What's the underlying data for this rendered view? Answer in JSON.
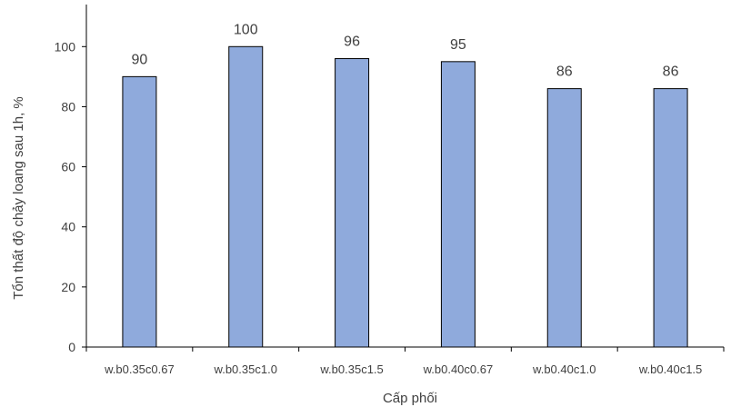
{
  "chart_data": {
    "type": "bar",
    "title": "",
    "xlabel": "Cấp phối",
    "ylabel": "Tổn thất độ chảy loang sau 1h, %",
    "categories": [
      "w.b0.35c0.67",
      "w.b0.35c1.0",
      "w.b0.35c1.5",
      "w.b0.40c0.67",
      "w.b0.40c1.0",
      "w.b0.40c1.5"
    ],
    "values": [
      90,
      100,
      96,
      95,
      86,
      86
    ],
    "data_labels": [
      "90",
      "100",
      "96",
      "95",
      "86",
      "86"
    ],
    "yticks": [
      0,
      20,
      40,
      60,
      80,
      100
    ],
    "ytick_labels": [
      "0",
      "20",
      "40",
      "60",
      "80",
      "100"
    ],
    "ylim": [
      0,
      114
    ],
    "grid": false,
    "legend": "none",
    "colors": {
      "bar_fill": "#8faadc",
      "bar_stroke": "#000000",
      "axis": "#000000",
      "text": "#404040"
    }
  }
}
